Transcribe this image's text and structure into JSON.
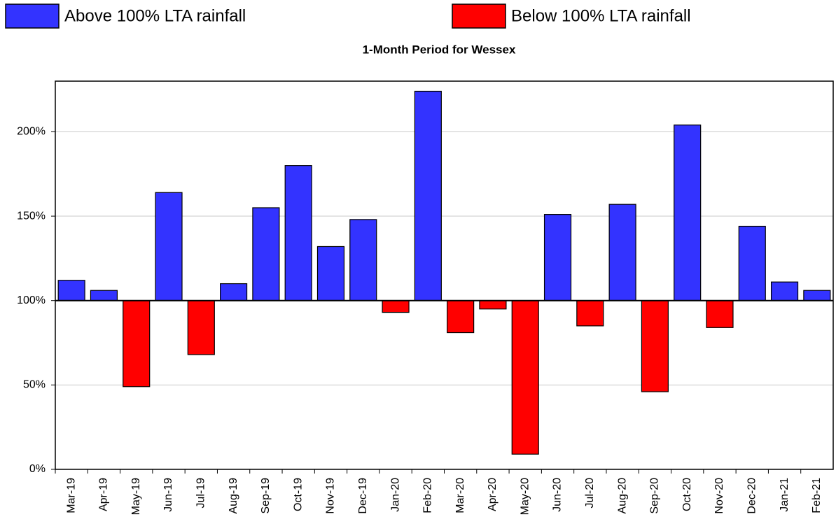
{
  "chart_data": {
    "type": "bar",
    "title": "1-Month Period for Wessex",
    "categories": [
      "Mar-19",
      "Apr-19",
      "May-19",
      "Jun-19",
      "Jul-19",
      "Aug-19",
      "Sep-19",
      "Oct-19",
      "Nov-19",
      "Dec-19",
      "Jan-20",
      "Feb-20",
      "Mar-20",
      "Apr-20",
      "May-20",
      "Jun-20",
      "Jul-20",
      "Aug-20",
      "Sep-20",
      "Oct-20",
      "Nov-20",
      "Dec-20",
      "Jan-21",
      "Feb-21"
    ],
    "series": [
      {
        "name": "Above 100% LTA rainfall",
        "color": "#3333ff",
        "values": [
          112,
          106,
          null,
          164,
          null,
          110,
          155,
          180,
          132,
          148,
          null,
          224,
          null,
          null,
          null,
          151,
          null,
          157,
          null,
          204,
          null,
          144,
          111,
          106
        ]
      },
      {
        "name": "Below 100% LTA rainfall",
        "color": "#ff0000",
        "values": [
          null,
          null,
          49,
          null,
          68,
          null,
          null,
          null,
          null,
          null,
          93,
          null,
          81,
          95,
          9,
          null,
          85,
          null,
          46,
          null,
          84,
          null,
          null,
          null
        ]
      }
    ],
    "baseline": 100,
    "ylim": [
      0,
      230
    ],
    "yticks": [
      {
        "value": 0,
        "label": "0%"
      },
      {
        "value": 50,
        "label": "50%"
      },
      {
        "value": 100,
        "label": "100%"
      },
      {
        "value": 150,
        "label": "150%"
      },
      {
        "value": 200,
        "label": "200%"
      }
    ],
    "grid": true,
    "legend": "top"
  }
}
